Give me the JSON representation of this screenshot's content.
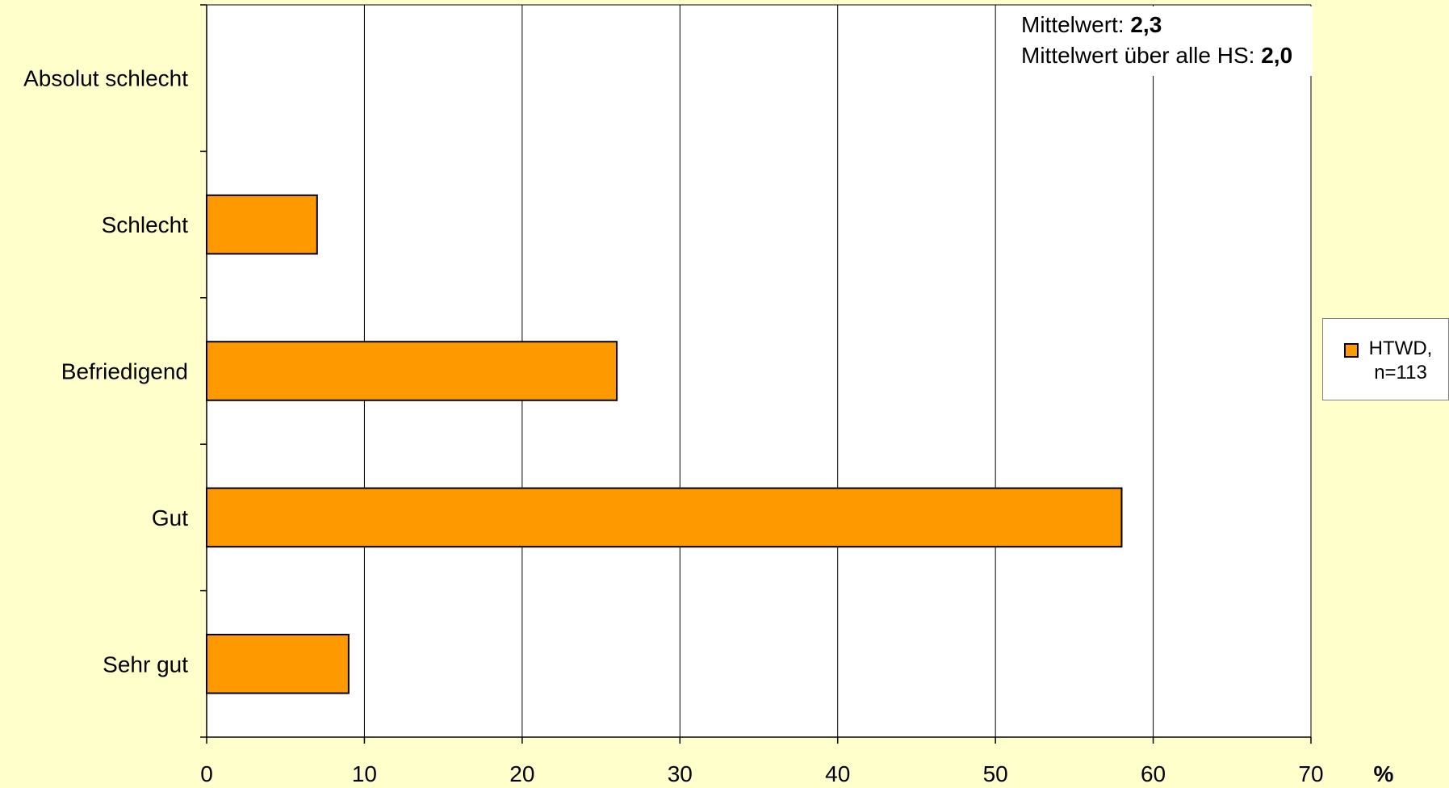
{
  "chart_data": {
    "type": "bar",
    "orientation": "horizontal",
    "categories": [
      "Absolut schlecht",
      "Schlecht",
      "Befriedigend",
      "Gut",
      "Sehr gut"
    ],
    "series": [
      {
        "name": "HTWD, n=113",
        "values": [
          0,
          7,
          26,
          58,
          9
        ],
        "color": "#ff9900"
      }
    ],
    "xlim": [
      0,
      70
    ],
    "xticks": [
      "0",
      "10",
      "20",
      "30",
      "40",
      "50",
      "60",
      "70"
    ],
    "xunit": "%",
    "grid": true,
    "legend_position": "right",
    "annotation": {
      "line1_label": "Mittelwert: ",
      "line1_value": "2,3",
      "line2_label": "Mittelwert über alle HS: ",
      "line2_value": "2,0"
    },
    "legend": {
      "line1": "HTWD,",
      "line2": "n=113"
    }
  },
  "colors": {
    "background": "#ffffcc",
    "plot_area": "#ffffff",
    "bar": "#ff9900",
    "gridline": "#000000"
  }
}
